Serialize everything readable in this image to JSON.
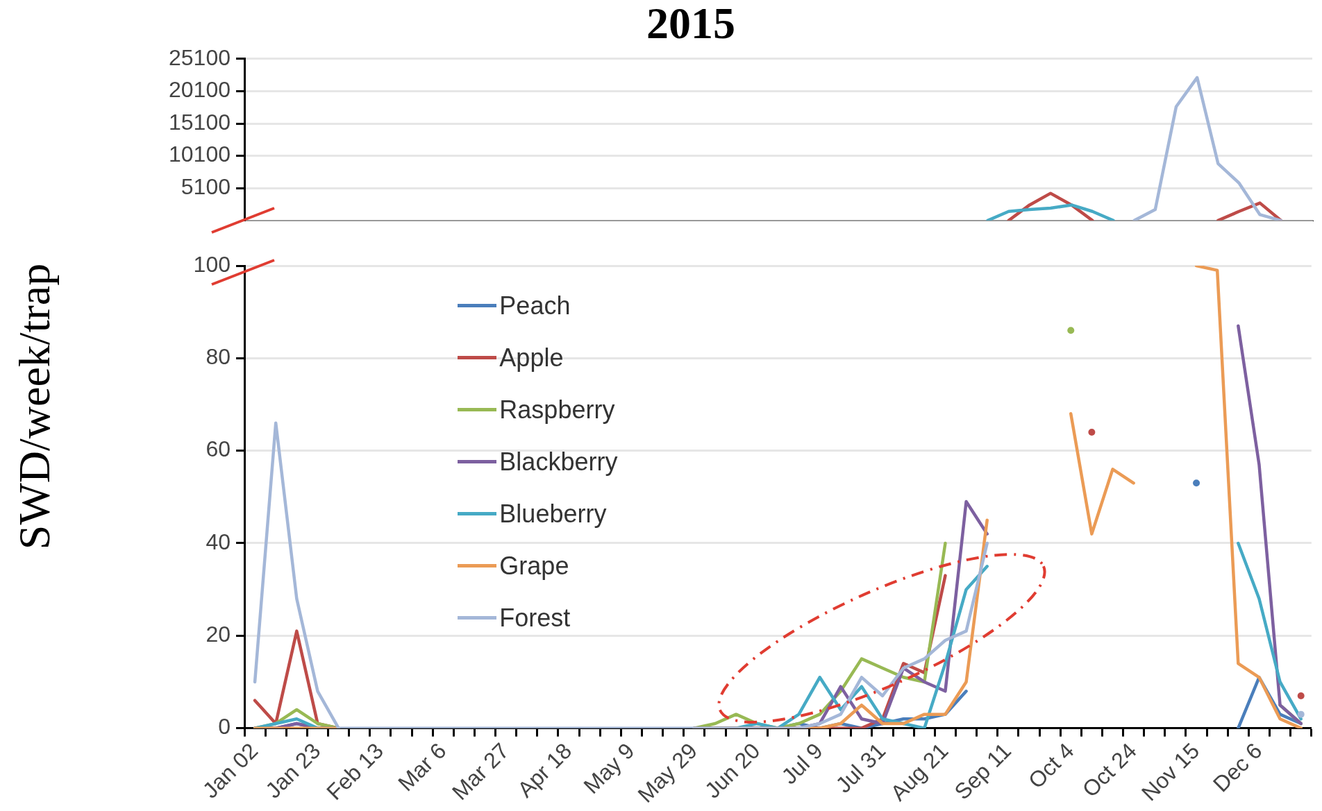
{
  "chart_data": [
    {
      "type": "line",
      "title": "2015",
      "categories": [
        null,
        null,
        null,
        null,
        null,
        null,
        null,
        null,
        null,
        null,
        null,
        null,
        null,
        null,
        null,
        null,
        null,
        null,
        null,
        null,
        null,
        null,
        null,
        null,
        null,
        null,
        null,
        null,
        null,
        null,
        null,
        null,
        null,
        null,
        null,
        null,
        null,
        null,
        null,
        null,
        null,
        null,
        null,
        null,
        null,
        null,
        null,
        null,
        null,
        null,
        null
      ],
      "ylim": [
        100,
        25100
      ],
      "yticks": [
        5100,
        10100,
        15100,
        20100,
        25100
      ],
      "grid": "y",
      "tick_labels": "y",
      "marker": "none",
      "series": [
        {
          "color": "#be4b48",
          "values": [
            null,
            null,
            null,
            null,
            null,
            null,
            null,
            null,
            null,
            null,
            null,
            null,
            null,
            null,
            null,
            null,
            null,
            null,
            null,
            null,
            null,
            null,
            null,
            null,
            null,
            null,
            null,
            null,
            null,
            null,
            null,
            null,
            null,
            null,
            null,
            null,
            100,
            2500,
            4300,
            2500,
            100,
            null,
            null,
            null,
            null,
            null,
            100,
            1500,
            2800,
            100,
            null
          ]
        },
        {
          "color": "#46aac5",
          "values": [
            null,
            null,
            null,
            null,
            null,
            null,
            null,
            null,
            null,
            null,
            null,
            null,
            null,
            null,
            null,
            null,
            null,
            null,
            null,
            null,
            null,
            null,
            null,
            null,
            null,
            null,
            null,
            null,
            null,
            null,
            null,
            null,
            null,
            null,
            null,
            100,
            1500,
            1800,
            2000,
            2500,
            1500,
            100,
            null,
            null,
            null,
            null,
            null,
            null,
            null,
            null,
            null
          ]
        },
        {
          "color": "#a4b7d8",
          "values": [
            null,
            null,
            null,
            null,
            null,
            null,
            null,
            null,
            null,
            null,
            null,
            null,
            null,
            null,
            null,
            null,
            null,
            null,
            null,
            null,
            null,
            null,
            null,
            null,
            null,
            null,
            null,
            null,
            null,
            null,
            null,
            null,
            null,
            null,
            null,
            null,
            null,
            null,
            null,
            null,
            null,
            null,
            100,
            1800,
            17700,
            22200,
            8900,
            5900,
            1000,
            100,
            null
          ]
        }
      ]
    },
    {
      "type": "line",
      "ylabel": "SWD/week/trap",
      "categories": [
        "Jan 02",
        null,
        null,
        "Jan 23",
        null,
        null,
        "Feb 13",
        null,
        null,
        "Mar 6",
        null,
        null,
        "Mar 27",
        null,
        null,
        "Apr 18",
        null,
        null,
        "May 9",
        null,
        null,
        "May 29",
        null,
        null,
        "Jun 20",
        null,
        null,
        "Jul 9",
        null,
        null,
        "Jul 31",
        null,
        null,
        "Aug 21",
        null,
        null,
        "Sep 11",
        null,
        null,
        "Oct 4",
        null,
        null,
        "Oct 24",
        null,
        null,
        "Nov 15",
        null,
        null,
        "Dec 6",
        null,
        null
      ],
      "ylim": [
        0,
        100
      ],
      "yticks": [
        0,
        20,
        40,
        60,
        80,
        100
      ],
      "grid": "y",
      "legend": "top left",
      "marker": "none",
      "series": [
        {
          "name": "Peach",
          "color": "#4a7ebb",
          "values": [
            0,
            0,
            1,
            0,
            0,
            null,
            null,
            null,
            null,
            null,
            null,
            null,
            null,
            null,
            null,
            null,
            null,
            null,
            null,
            null,
            null,
            0,
            0,
            0,
            0,
            0,
            1,
            0,
            1,
            0,
            1,
            2,
            2,
            3,
            8,
            null,
            null,
            null,
            null,
            null,
            null,
            null,
            null,
            null,
            null,
            53,
            null,
            0,
            11,
            3,
            1
          ]
        },
        {
          "name": "Apple",
          "color": "#be4b48",
          "values": [
            6,
            1,
            21,
            1,
            0,
            null,
            null,
            null,
            null,
            null,
            null,
            null,
            null,
            null,
            null,
            null,
            null,
            null,
            null,
            null,
            null,
            0,
            0,
            0,
            0,
            0,
            0,
            0,
            0,
            0,
            2,
            14,
            12,
            33,
            null,
            null,
            null,
            null,
            null,
            null,
            64,
            null,
            null,
            null,
            null,
            null,
            null,
            null,
            null,
            null,
            7
          ]
        },
        {
          "name": "Raspberry",
          "color": "#98b954",
          "values": [
            0,
            1,
            4,
            1,
            0,
            null,
            null,
            null,
            null,
            null,
            null,
            null,
            null,
            null,
            null,
            null,
            null,
            null,
            null,
            null,
            null,
            0,
            1,
            3,
            1,
            0,
            1,
            3,
            8,
            15,
            13,
            11,
            10,
            40,
            null,
            null,
            null,
            null,
            null,
            86,
            null,
            null,
            null,
            null,
            null,
            null,
            null,
            null,
            null,
            5,
            1
          ]
        },
        {
          "name": "Blackberry",
          "color": "#7d60a0",
          "values": [
            0,
            0,
            1,
            0,
            0,
            null,
            null,
            null,
            null,
            null,
            null,
            null,
            null,
            null,
            null,
            null,
            null,
            null,
            null,
            null,
            null,
            0,
            0,
            0,
            0,
            0,
            0,
            1,
            9,
            2,
            1,
            13,
            10,
            8,
            49,
            42,
            null,
            null,
            null,
            null,
            null,
            null,
            null,
            null,
            null,
            null,
            null,
            87,
            57,
            5,
            1
          ]
        },
        {
          "name": "Blueberry",
          "color": "#46aac5",
          "values": [
            0,
            1,
            2,
            0,
            0,
            null,
            null,
            null,
            null,
            null,
            null,
            null,
            null,
            null,
            null,
            null,
            null,
            null,
            null,
            null,
            null,
            0,
            0,
            0,
            1,
            0,
            3,
            11,
            4,
            9,
            2,
            1,
            0,
            14,
            30,
            35,
            null,
            null,
            null,
            null,
            null,
            null,
            null,
            null,
            null,
            null,
            null,
            40,
            28,
            10,
            2
          ]
        },
        {
          "name": "Grape",
          "color": "#eb9b55",
          "values": [
            0,
            0,
            0,
            0,
            0,
            null,
            null,
            null,
            null,
            null,
            null,
            null,
            null,
            null,
            null,
            null,
            null,
            null,
            null,
            null,
            null,
            0,
            0,
            0,
            0,
            0,
            0,
            0,
            1,
            5,
            1,
            1,
            3,
            3,
            10,
            45,
            null,
            null,
            null,
            68,
            42,
            56,
            53,
            null,
            null,
            100,
            99,
            14,
            11,
            2,
            0
          ]
        },
        {
          "name": "Forest",
          "color": "#a4b7d8",
          "values": [
            10,
            66,
            28,
            8,
            0,
            0,
            0,
            0,
            0,
            0,
            0,
            0,
            0,
            0,
            0,
            0,
            0,
            0,
            0,
            0,
            0,
            0,
            0,
            0,
            0,
            0,
            0,
            1,
            3,
            11,
            7,
            13,
            15,
            19,
            21,
            40,
            null,
            null,
            null,
            null,
            null,
            null,
            null,
            null,
            null,
            null,
            null,
            null,
            null,
            null,
            3
          ]
        }
      ]
    }
  ]
}
